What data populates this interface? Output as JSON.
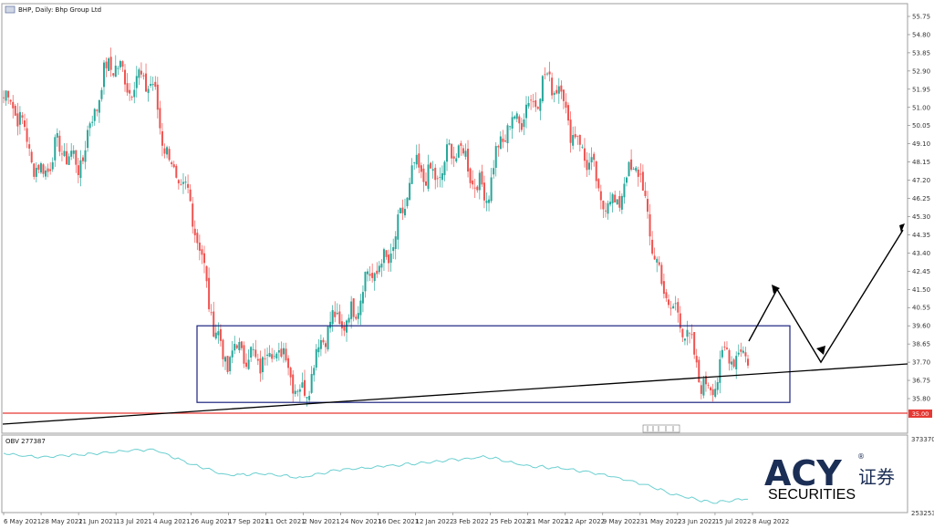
{
  "header": {
    "title": "BHP, Daily:  Bhp Group Ltd",
    "icon": "chart-window-icon"
  },
  "price_axis": {
    "ticks": [
      "55.75",
      "54.80",
      "53.85",
      "52.90",
      "51.95",
      "51.00",
      "50.05",
      "49.10",
      "48.15",
      "47.20",
      "46.25",
      "45.30",
      "44.35",
      "43.40",
      "42.45",
      "41.50",
      "40.55",
      "39.60",
      "38.65",
      "37.70",
      "36.75",
      "35.80"
    ],
    "current_price_label": "35.00",
    "current_price_color": "#e53935"
  },
  "obv": {
    "label": "OBV 277387",
    "axis_ticks": [
      "373370",
      "253253"
    ],
    "line_color": "#6ccfd0"
  },
  "date_axis": {
    "ticks": [
      "6 May 2021",
      "28 May 2021",
      "21 Jun 2021",
      "13 Jul 2021",
      "4 Aug 2021",
      "26 Aug 2021",
      "17 Sep 2021",
      "11 Oct 2021",
      "2 Nov 2021",
      "24 Nov 2021",
      "16 Dec 2021",
      "12 Jan 2022",
      "3 Feb 2022",
      "25 Feb 2022",
      "21 Mar 2022",
      "12 Apr 2022",
      "9 May 2022",
      "31 May 2022",
      "23 Jun 2022",
      "15 Jul 2022",
      "8 Aug 2022"
    ]
  },
  "logo": {
    "brand": "ACY",
    "cn": "证券",
    "sub": "SECURITIES",
    "reg": "®"
  },
  "colors": {
    "bull": "#26a69a",
    "bear": "#ef5350",
    "box": "#1a237e",
    "trendline": "#000000",
    "support": "#e53935"
  },
  "chart_data": {
    "type": "candlestick",
    "title": "BHP, Daily:  Bhp Group Ltd",
    "y_range": [
      35.0,
      56.0
    ],
    "closes": [
      {
        "date": "2021-05-06",
        "close": 51.5
      },
      {
        "date": "2021-05-28",
        "close": 48.0
      },
      {
        "date": "2021-06-21",
        "close": 48.5
      },
      {
        "date": "2021-07-13",
        "close": 53.5
      },
      {
        "date": "2021-08-04",
        "close": 51.5
      },
      {
        "date": "2021-08-26",
        "close": 45.5
      },
      {
        "date": "2021-09-17",
        "close": 37.5
      },
      {
        "date": "2021-10-11",
        "close": 38.5
      },
      {
        "date": "2021-11-02",
        "close": 36.5
      },
      {
        "date": "2021-11-24",
        "close": 40.0
      },
      {
        "date": "2021-12-16",
        "close": 42.0
      },
      {
        "date": "2022-01-12",
        "close": 47.0
      },
      {
        "date": "2022-02-03",
        "close": 48.5
      },
      {
        "date": "2022-02-25",
        "close": 47.0
      },
      {
        "date": "2022-03-21",
        "close": 51.5
      },
      {
        "date": "2022-04-12",
        "close": 52.0
      },
      {
        "date": "2022-05-09",
        "close": 46.0
      },
      {
        "date": "2022-05-31",
        "close": 47.5
      },
      {
        "date": "2022-06-23",
        "close": 40.0
      },
      {
        "date": "2022-07-15",
        "close": 36.5
      },
      {
        "date": "2022-08-08",
        "close": 38.8
      }
    ],
    "support_level": 35.0,
    "range_box": {
      "top": 39.6,
      "bottom": 35.6,
      "from": "2021-08-26",
      "to": "2022-08-30"
    },
    "projection": [
      38.8,
      41.5,
      37.7,
      44.6
    ]
  }
}
